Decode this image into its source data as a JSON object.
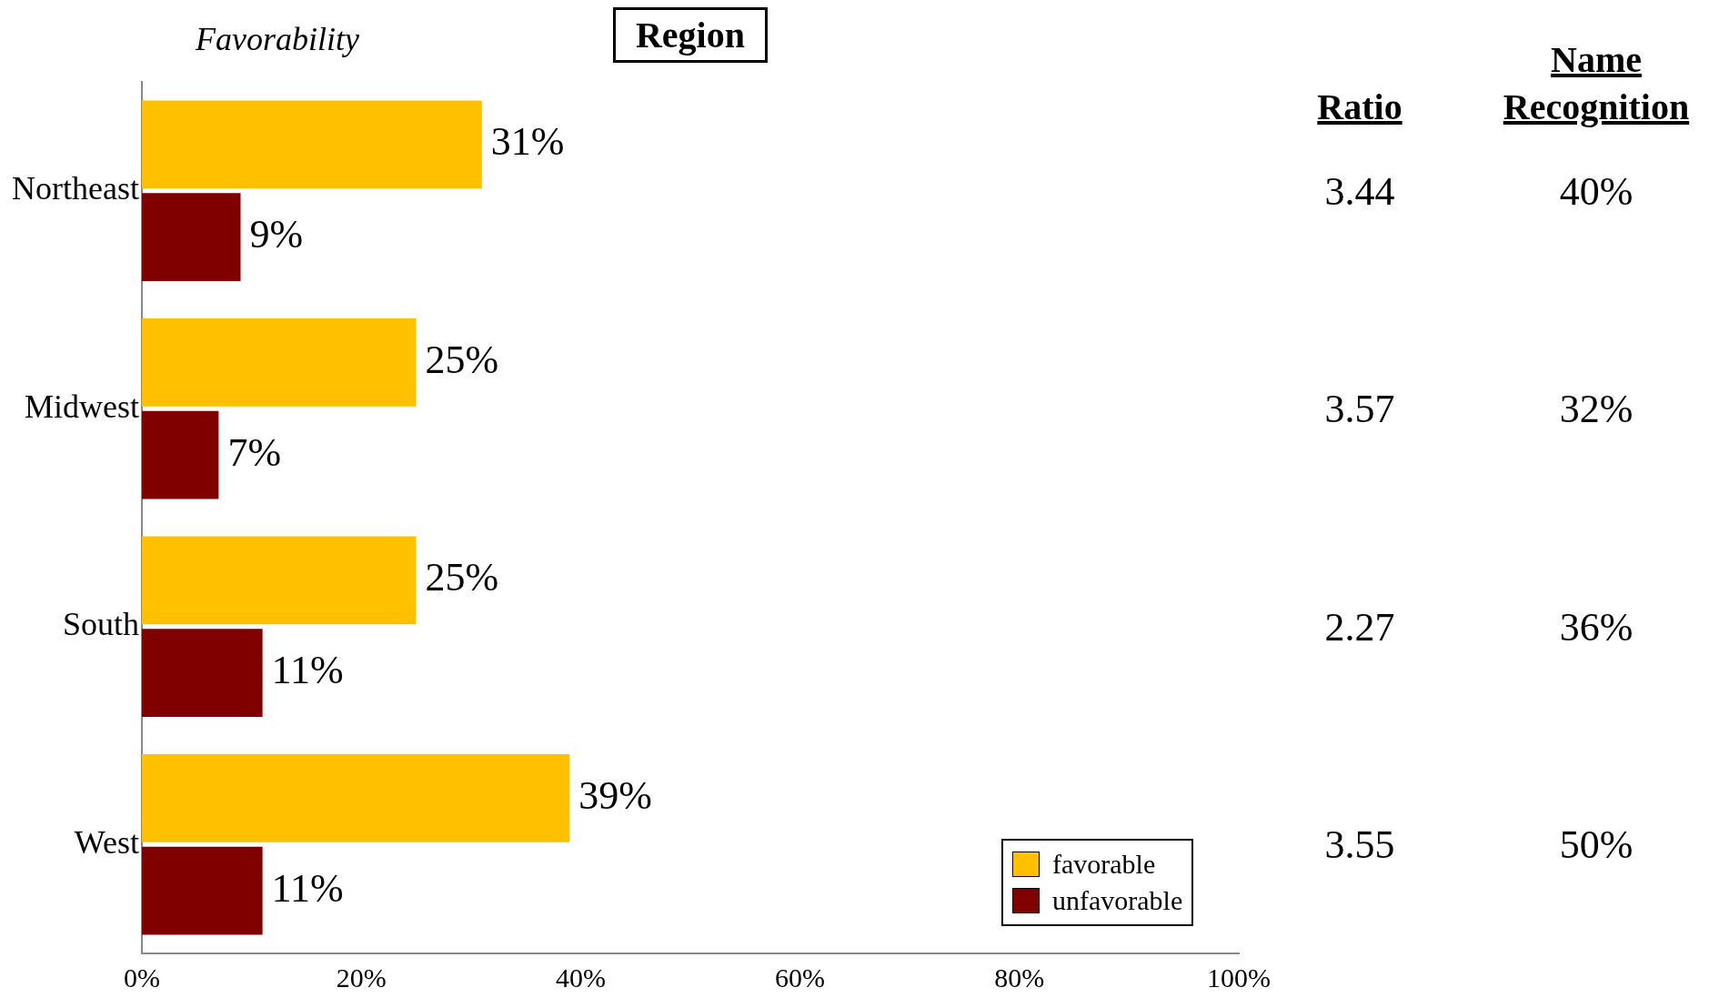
{
  "chart_data": {
    "type": "bar",
    "orientation": "horizontal",
    "title": "Region",
    "ylabel": "Favorability",
    "categories": [
      "Northeast",
      "Midwest",
      "South",
      "West"
    ],
    "series": [
      {
        "name": "favorable",
        "color": "#ffc000",
        "values": [
          31,
          25,
          25,
          39
        ],
        "value_labels": [
          "31%",
          "25%",
          "25%",
          "39%"
        ]
      },
      {
        "name": "unfavorable",
        "color": "#800000",
        "values": [
          9,
          7,
          11,
          11
        ],
        "value_labels": [
          "9%",
          "7%",
          "11%",
          "11%"
        ]
      }
    ],
    "xlim": [
      0,
      100
    ],
    "xticks": [
      {
        "value": 0,
        "label": "0%"
      },
      {
        "value": 20,
        "label": "20%"
      },
      {
        "value": 40,
        "label": "40%"
      },
      {
        "value": 60,
        "label": "60%"
      },
      {
        "value": 80,
        "label": "80%"
      },
      {
        "value": 100,
        "label": "100%"
      }
    ],
    "grid": false,
    "legend": "bottom right",
    "annotations": [
      "Ratio",
      "Name Recognition",
      "3.44",
      "40%",
      "3.57",
      "32%",
      "2.27",
      "36%",
      "3.55",
      "50%"
    ]
  }
}
